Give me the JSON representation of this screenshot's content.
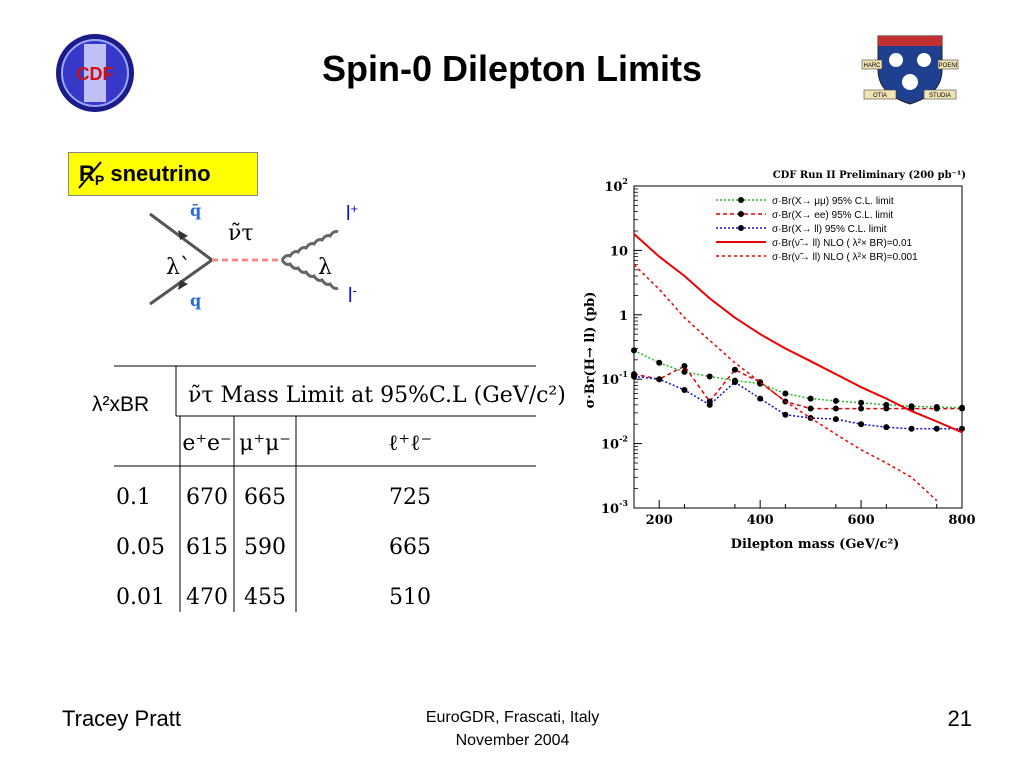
{
  "slide": {
    "title": "Spin-0 Dilepton Limits",
    "badge_main": "R",
    "badge_sub": "P",
    "badge_rest": " sneutrino",
    "footer_left": "Tracey Pratt",
    "footer_center_line1": "EuroGDR, Frascati, Italy",
    "footer_center_line2": "November 2004",
    "page_number": "21",
    "logos": {
      "left": "cdf-logo",
      "left_text": "CDF",
      "right": "university-crest",
      "right_text": [
        "HARC",
        "POENI",
        "OTIA",
        "STUDIA"
      ]
    }
  },
  "diagram": {
    "quark_top": "q̄",
    "quark_bottom": "q",
    "coupling_left": "λ`",
    "propagator": "ν̃τ",
    "coupling_right": "λ",
    "lepton_top": "l",
    "lepton_top_sup": "+",
    "lepton_bottom": "l",
    "lepton_bottom_sup": "-"
  },
  "mass_table": {
    "row_header": "λ²xBR",
    "title": "ν̃τ Mass Limit at 95%C.L (GeV/c²)",
    "columns": [
      "e⁺e⁻",
      "μ⁺μ⁻",
      "ℓ⁺ℓ⁻"
    ],
    "rows": [
      {
        "lambda": "0.1",
        "ee": "670",
        "mumu": "665",
        "ll": "725"
      },
      {
        "lambda": "0.05",
        "ee": "615",
        "mumu": "590",
        "ll": "665"
      },
      {
        "lambda": "0.01",
        "ee": "470",
        "mumu": "455",
        "ll": "510"
      }
    ]
  },
  "chart_data": {
    "type": "line",
    "title": "CDF Run II Preliminary (200 pb⁻¹)",
    "xlabel": "Dilepton mass (GeV/c²)",
    "ylabel": "σ·Br(H→ ll) (pb)",
    "xlim": [
      150,
      800
    ],
    "ylim": [
      0.001,
      100
    ],
    "y_scale": "log",
    "x_ticks": [
      200,
      400,
      600,
      800
    ],
    "y_ticks": [
      "10^-3",
      "10^-2",
      "10^-1",
      "1",
      "10",
      "10^2"
    ],
    "legend_placement": "top-right",
    "series": [
      {
        "name": "σ·Br(X→ μμ) 95% C.L. limit",
        "color": "#22bb22",
        "style": "dotted-markers",
        "x": [
          150,
          200,
          250,
          300,
          350,
          400,
          450,
          500,
          550,
          600,
          650,
          700,
          750,
          800
        ],
        "y": [
          0.28,
          0.18,
          0.13,
          0.11,
          0.095,
          0.085,
          0.06,
          0.05,
          0.046,
          0.043,
          0.04,
          0.038,
          0.037,
          0.036
        ]
      },
      {
        "name": "σ·Br(X→ ee) 95% C.L. limit",
        "color": "#dd0000",
        "style": "dashed-markers",
        "x": [
          150,
          200,
          250,
          300,
          350,
          400,
          450,
          500,
          550,
          600,
          650,
          700,
          750,
          800
        ],
        "y": [
          0.12,
          0.1,
          0.16,
          0.045,
          0.14,
          0.09,
          0.045,
          0.035,
          0.035,
          0.035,
          0.035,
          0.035,
          0.035,
          0.035
        ]
      },
      {
        "name": "σ·Br(X→ ll) 95% C.L. limit",
        "color": "#1111cc",
        "style": "dotted-markers",
        "x": [
          150,
          200,
          250,
          300,
          350,
          400,
          450,
          500,
          550,
          600,
          650,
          700,
          750,
          800
        ],
        "y": [
          0.11,
          0.1,
          0.068,
          0.04,
          0.09,
          0.05,
          0.028,
          0.025,
          0.024,
          0.02,
          0.018,
          0.017,
          0.017,
          0.017
        ]
      },
      {
        "name": "σ·Br(ν̃→ ll) NLO ( λ²× BR)=0.01",
        "color": "#ee0000",
        "style": "solid",
        "x": [
          150,
          200,
          250,
          300,
          350,
          400,
          450,
          500,
          550,
          600,
          650,
          700,
          750,
          800
        ],
        "y": [
          18,
          8,
          4,
          1.8,
          0.9,
          0.5,
          0.3,
          0.19,
          0.12,
          0.075,
          0.05,
          0.032,
          0.022,
          0.015
        ]
      },
      {
        "name": "σ·Br(ν̃→ ll) NLO ( λ²× BR)=0.001",
        "color": "#ee0000",
        "style": "dashed",
        "x": [
          150,
          200,
          250,
          300,
          350,
          400,
          450,
          500,
          550,
          600,
          650,
          700,
          750
        ],
        "y": [
          6,
          2.5,
          0.9,
          0.4,
          0.18,
          0.09,
          0.045,
          0.025,
          0.014,
          0.008,
          0.005,
          0.003,
          0.0013
        ]
      }
    ]
  }
}
